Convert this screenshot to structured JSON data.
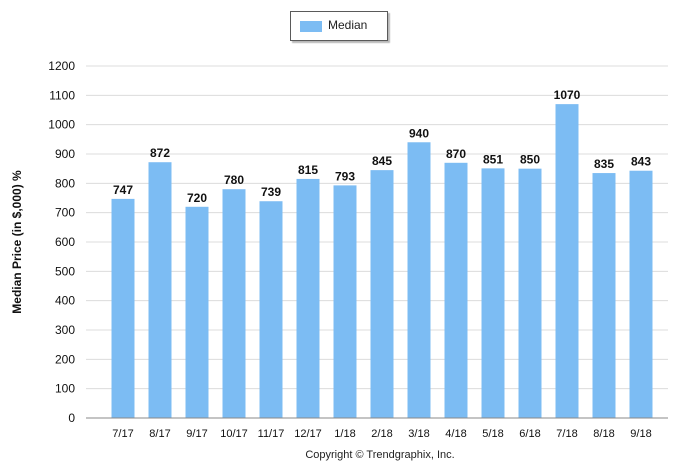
{
  "legend": {
    "series_name": "Median"
  },
  "footer": {
    "copyright": "Copyright © Trendgraphix, Inc."
  },
  "colors": {
    "bar": "#7cbcf3",
    "grid": "#dcdcdc",
    "axis": "#888888"
  },
  "chart_data": {
    "type": "bar",
    "title": "",
    "xlabel": "",
    "ylabel": "Median Price (in $,000) %",
    "ylim": [
      0,
      1200
    ],
    "y_ticks": [
      0,
      100,
      200,
      300,
      400,
      500,
      600,
      700,
      800,
      900,
      1000,
      1100,
      1200
    ],
    "grid": true,
    "legend_position": "top-center",
    "categories": [
      "7/17",
      "8/17",
      "9/17",
      "10/17",
      "11/17",
      "12/17",
      "1/18",
      "2/18",
      "3/18",
      "4/18",
      "5/18",
      "6/18",
      "7/18",
      "8/18",
      "9/18"
    ],
    "series": [
      {
        "name": "Median",
        "values": [
          747,
          872,
          720,
          780,
          739,
          815,
          793,
          845,
          940,
          870,
          851,
          850,
          1070,
          835,
          843
        ]
      }
    ]
  }
}
